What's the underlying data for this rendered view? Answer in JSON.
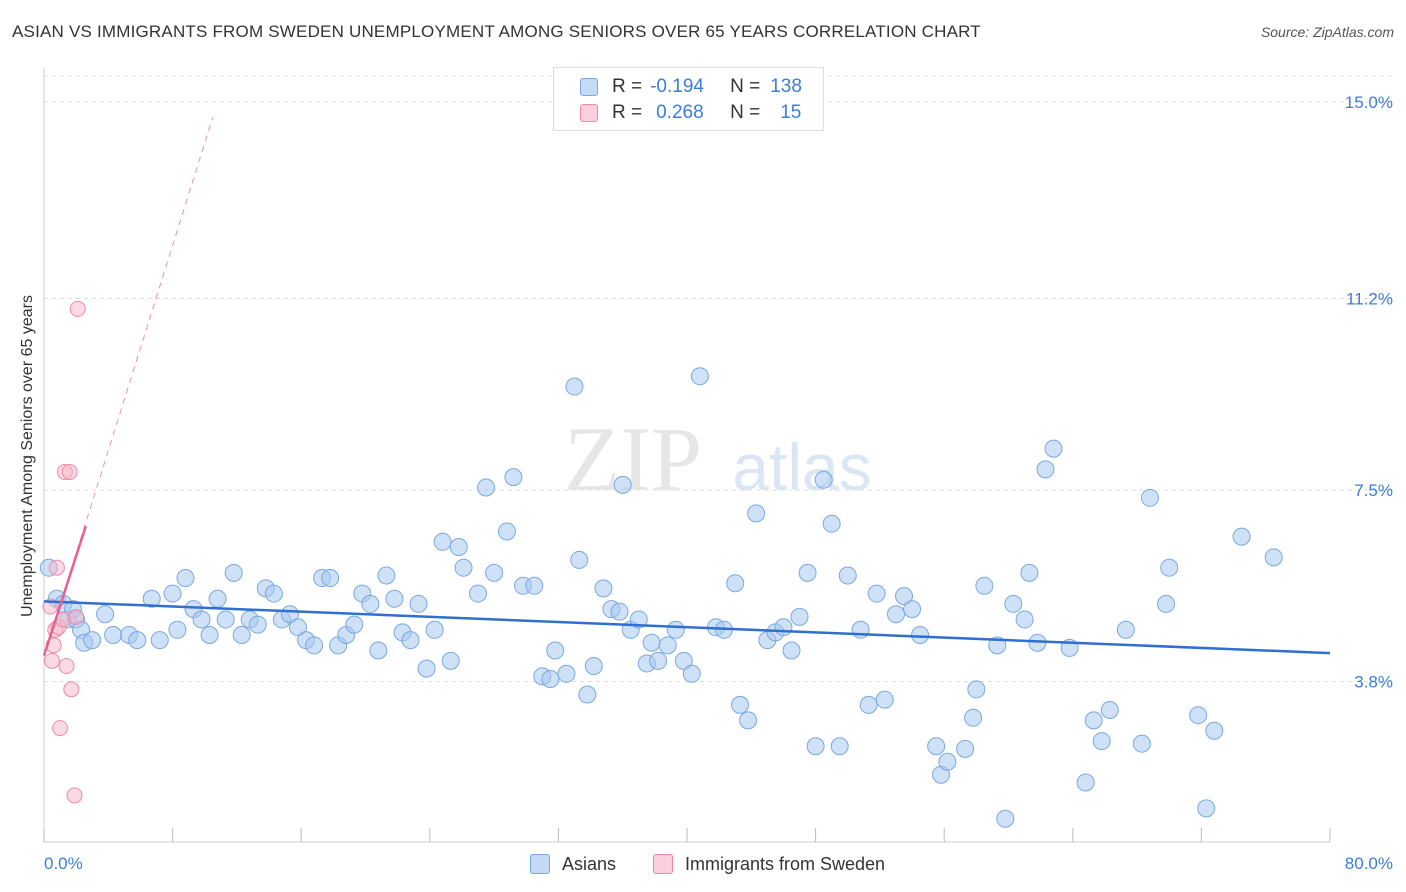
{
  "header": {
    "title": "ASIAN VS IMMIGRANTS FROM SWEDEN UNEMPLOYMENT AMONG SENIORS OVER 65 YEARS CORRELATION CHART",
    "source": "Source: ZipAtlas.com"
  },
  "watermark": {
    "zip": "ZIP",
    "atlas": "atlas"
  },
  "legend": {
    "rows": [
      {
        "r_label": "R =",
        "r_value": "-0.194",
        "n_label": "N =",
        "n_value": "138",
        "color": "#a8c8f0"
      },
      {
        "r_label": "R =",
        "r_value": "0.268",
        "n_label": "N =",
        "n_value": "15",
        "color": "#f7b6c8"
      }
    ]
  },
  "bottom_legend": {
    "asians": "Asians",
    "sweden": "Immigrants from Sweden"
  },
  "colors": {
    "asian_fill": "#a8c8f0",
    "asian_stroke": "#7aa8e0",
    "asian_line": "#2f6fcf",
    "sweden_fill": "#f7b6c8",
    "sweden_stroke": "#ee8aa8",
    "sweden_line": "#e8608e",
    "axis_label": "#3b7dd8",
    "grid": "#dddddd"
  },
  "chart_data": {
    "type": "scatter",
    "title": "ASIAN VS IMMIGRANTS FROM SWEDEN UNEMPLOYMENT AMONG SENIORS OVER 65 YEARS CORRELATION CHART",
    "xlabel": "",
    "ylabel": "Unemployment Among Seniors over 65 years",
    "xlim": [
      0,
      80
    ],
    "ylim": [
      0.7,
      15.5
    ],
    "x_tick_labels": [
      "0.0%",
      "80.0%"
    ],
    "y_ticks": [
      3.8,
      7.5,
      11.2,
      15.0
    ],
    "y_tick_labels": [
      "3.8%",
      "7.5%",
      "11.2%",
      "15.0%"
    ],
    "grid": "horizontal dashed",
    "series": [
      {
        "name": "Asians",
        "R": -0.194,
        "N": 138,
        "trend": {
          "x": [
            0,
            80
          ],
          "y": [
            5.35,
            4.35
          ]
        },
        "points": [
          [
            0.3,
            6.0
          ],
          [
            0.8,
            5.4
          ],
          [
            1.2,
            5.3
          ],
          [
            1.5,
            5.0
          ],
          [
            1.8,
            5.2
          ],
          [
            2.0,
            5.0
          ],
          [
            2.3,
            4.8
          ],
          [
            2.5,
            4.55
          ],
          [
            3.0,
            4.6
          ],
          [
            3.8,
            5.1
          ],
          [
            4.3,
            4.7
          ],
          [
            5.3,
            4.7
          ],
          [
            5.8,
            4.6
          ],
          [
            6.7,
            5.4
          ],
          [
            7.2,
            4.6
          ],
          [
            8.0,
            5.5
          ],
          [
            8.3,
            4.8
          ],
          [
            8.8,
            5.8
          ],
          [
            9.3,
            5.2
          ],
          [
            9.8,
            5.0
          ],
          [
            10.3,
            4.7
          ],
          [
            10.8,
            5.4
          ],
          [
            11.3,
            5.0
          ],
          [
            11.8,
            5.9
          ],
          [
            12.3,
            4.7
          ],
          [
            12.8,
            5.0
          ],
          [
            13.3,
            4.9
          ],
          [
            13.8,
            5.6
          ],
          [
            14.3,
            5.5
          ],
          [
            14.8,
            5.0
          ],
          [
            15.3,
            5.1
          ],
          [
            15.8,
            4.85
          ],
          [
            16.3,
            4.6
          ],
          [
            16.8,
            4.5
          ],
          [
            17.3,
            5.8
          ],
          [
            17.8,
            5.8
          ],
          [
            18.3,
            4.5
          ],
          [
            18.8,
            4.7
          ],
          [
            19.3,
            4.9
          ],
          [
            19.8,
            5.5
          ],
          [
            20.3,
            5.3
          ],
          [
            20.8,
            4.4
          ],
          [
            21.3,
            5.85
          ],
          [
            21.8,
            5.4
          ],
          [
            22.3,
            4.75
          ],
          [
            22.8,
            4.6
          ],
          [
            23.3,
            5.3
          ],
          [
            23.8,
            4.05
          ],
          [
            24.3,
            4.8
          ],
          [
            24.8,
            6.5
          ],
          [
            25.3,
            4.2
          ],
          [
            25.8,
            6.4
          ],
          [
            26.1,
            6.0
          ],
          [
            27.0,
            5.5
          ],
          [
            27.5,
            7.55
          ],
          [
            28.0,
            5.9
          ],
          [
            28.8,
            6.7
          ],
          [
            29.2,
            7.75
          ],
          [
            29.8,
            5.65
          ],
          [
            30.5,
            5.65
          ],
          [
            31.0,
            3.9
          ],
          [
            31.5,
            3.85
          ],
          [
            31.8,
            4.4
          ],
          [
            32.5,
            3.95
          ],
          [
            33.0,
            9.5
          ],
          [
            33.3,
            6.15
          ],
          [
            33.8,
            3.55
          ],
          [
            34.2,
            4.1
          ],
          [
            34.8,
            5.6
          ],
          [
            35.3,
            5.2
          ],
          [
            35.8,
            5.15
          ],
          [
            36.0,
            7.6
          ],
          [
            36.5,
            4.8
          ],
          [
            37.0,
            5.0
          ],
          [
            37.5,
            4.15
          ],
          [
            37.8,
            4.55
          ],
          [
            38.2,
            4.2
          ],
          [
            38.8,
            4.5
          ],
          [
            39.3,
            4.8
          ],
          [
            39.8,
            4.2
          ],
          [
            40.3,
            3.95
          ],
          [
            40.8,
            9.7
          ],
          [
            41.8,
            4.85
          ],
          [
            42.3,
            4.8
          ],
          [
            43.0,
            5.7
          ],
          [
            43.3,
            3.35
          ],
          [
            43.8,
            3.05
          ],
          [
            44.3,
            7.05
          ],
          [
            45.0,
            4.6
          ],
          [
            45.5,
            4.75
          ],
          [
            46.0,
            4.85
          ],
          [
            46.5,
            4.4
          ],
          [
            47.0,
            5.05
          ],
          [
            47.5,
            5.9
          ],
          [
            48.0,
            2.55
          ],
          [
            48.5,
            7.7
          ],
          [
            49.0,
            6.85
          ],
          [
            49.5,
            2.55
          ],
          [
            50.0,
            5.85
          ],
          [
            50.8,
            4.8
          ],
          [
            51.3,
            3.35
          ],
          [
            51.8,
            5.5
          ],
          [
            52.3,
            3.45
          ],
          [
            53.0,
            5.1
          ],
          [
            53.5,
            5.45
          ],
          [
            54.0,
            5.2
          ],
          [
            54.5,
            4.7
          ],
          [
            55.5,
            2.55
          ],
          [
            55.8,
            2.0
          ],
          [
            56.2,
            2.25
          ],
          [
            57.3,
            2.5
          ],
          [
            57.8,
            3.1
          ],
          [
            58.0,
            3.65
          ],
          [
            58.5,
            5.65
          ],
          [
            59.3,
            4.5
          ],
          [
            59.8,
            1.15
          ],
          [
            60.3,
            5.3
          ],
          [
            61.0,
            5.0
          ],
          [
            61.3,
            5.9
          ],
          [
            61.8,
            4.55
          ],
          [
            62.3,
            7.9
          ],
          [
            62.8,
            8.3
          ],
          [
            63.8,
            4.45
          ],
          [
            64.8,
            1.85
          ],
          [
            65.3,
            3.05
          ],
          [
            65.8,
            2.65
          ],
          [
            66.3,
            3.25
          ],
          [
            67.3,
            4.8
          ],
          [
            68.3,
            2.6
          ],
          [
            68.8,
            7.35
          ],
          [
            69.8,
            5.3
          ],
          [
            70.0,
            6.0
          ],
          [
            71.8,
            3.15
          ],
          [
            72.3,
            1.35
          ],
          [
            72.8,
            2.85
          ],
          [
            74.5,
            6.6
          ],
          [
            76.5,
            6.2
          ]
        ]
      },
      {
        "name": "Immigrants from Sweden",
        "R": 0.268,
        "N": 15,
        "trend": {
          "x": [
            0,
            2.6
          ],
          "y": [
            4.3,
            6.8
          ]
        },
        "trend_extended": {
          "x": [
            0,
            10.5
          ],
          "y": [
            4.3,
            14.7
          ]
        },
        "points": [
          [
            0.4,
            5.25
          ],
          [
            0.5,
            4.2
          ],
          [
            0.6,
            4.5
          ],
          [
            0.7,
            4.8
          ],
          [
            0.8,
            6.0
          ],
          [
            0.9,
            4.85
          ],
          [
            1.0,
            2.9
          ],
          [
            1.2,
            5.0
          ],
          [
            1.3,
            7.85
          ],
          [
            1.4,
            4.1
          ],
          [
            1.6,
            7.85
          ],
          [
            1.7,
            3.65
          ],
          [
            1.9,
            1.6
          ],
          [
            2.0,
            5.05
          ],
          [
            2.1,
            11.0
          ]
        ]
      }
    ]
  }
}
